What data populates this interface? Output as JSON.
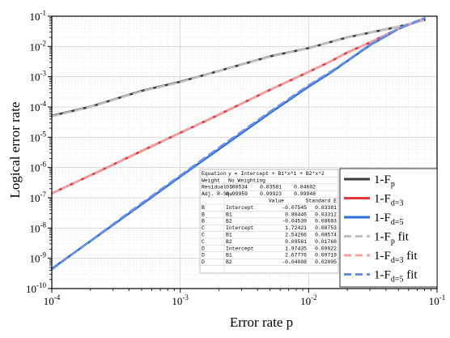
{
  "chart_data": {
    "type": "line",
    "xlabel": "Error rate p",
    "ylabel": "Logical error rate",
    "xscale": "log",
    "yscale": "log",
    "xlim": [
      0.0001,
      0.1
    ],
    "ylim": [
      1e-10,
      0.1
    ],
    "grid": true,
    "x_ticks": [
      {
        "value": 0.0001,
        "base": "10",
        "exp": "-4"
      },
      {
        "value": 0.001,
        "base": "10",
        "exp": "-3"
      },
      {
        "value": 0.01,
        "base": "10",
        "exp": "-2"
      },
      {
        "value": 0.1,
        "base": "10",
        "exp": "-1"
      }
    ],
    "y_ticks": [
      {
        "value": 1e-10,
        "base": "10",
        "exp": "-10"
      },
      {
        "value": 1e-09,
        "base": "10",
        "exp": "-9"
      },
      {
        "value": 1e-08,
        "base": "10",
        "exp": "-8"
      },
      {
        "value": 1e-07,
        "base": "10",
        "exp": "-7"
      },
      {
        "value": 1e-06,
        "base": "10",
        "exp": "-6"
      },
      {
        "value": 1e-05,
        "base": "10",
        "exp": "-5"
      },
      {
        "value": 0.0001,
        "base": "10",
        "exp": "-4"
      },
      {
        "value": 0.001,
        "base": "10",
        "exp": "-3"
      },
      {
        "value": 0.01,
        "base": "10",
        "exp": "-2"
      },
      {
        "value": 0.1,
        "base": "10",
        "exp": "-1"
      }
    ],
    "legend_position": "bottom-right",
    "series": [
      {
        "name": "1-Fp",
        "base": "1-F",
        "sub": "p",
        "suffix": "",
        "color": "#3c3c3c",
        "dashed": false,
        "x": [
          0.0001,
          0.0002,
          0.0005,
          0.001,
          0.002,
          0.005,
          0.01,
          0.02,
          0.05,
          0.08
        ],
        "y": [
          5.1e-05,
          0.000102,
          0.00034,
          0.00068,
          0.00155,
          0.0047,
          0.0088,
          0.02,
          0.045,
          0.075
        ]
      },
      {
        "name": "1-Fd=3",
        "base": "1-F",
        "sub": "d=3",
        "suffix": "",
        "color": "#e8343a",
        "dashed": false,
        "x": [
          0.0001,
          0.0002,
          0.0005,
          0.001,
          0.002,
          0.005,
          0.01,
          0.015,
          0.02,
          0.03,
          0.05,
          0.08
        ],
        "y": [
          1.4e-07,
          5.5e-07,
          3.5e-06,
          1.4e-05,
          5.6e-05,
          0.00037,
          0.00145,
          0.0033,
          0.0063,
          0.0135,
          0.038,
          0.085
        ]
      },
      {
        "name": "1-Fd=5",
        "base": "1-F",
        "sub": "d=5",
        "suffix": "",
        "color": "#2e6fe0",
        "dashed": false,
        "x": [
          0.0001,
          0.0002,
          0.0005,
          0.001,
          0.002,
          0.005,
          0.01,
          0.015,
          0.02,
          0.03,
          0.05,
          0.08
        ],
        "y": [
          4.5e-10,
          3.7e-09,
          6e-08,
          5e-07,
          4e-06,
          6.3e-05,
          0.00047,
          0.0014,
          0.0033,
          0.011,
          0.038,
          0.085
        ]
      },
      {
        "name": "1-Fp fit",
        "base": "1-F",
        "sub": "p",
        "suffix": " fit",
        "color": "#c0c0c0",
        "dashed": true,
        "x": [
          0.0001,
          0.0002,
          0.0005,
          0.001,
          0.002,
          0.005,
          0.01,
          0.02,
          0.05,
          0.08
        ],
        "y": [
          4.9e-05,
          0.0001,
          0.00033,
          0.00066,
          0.00155,
          0.0046,
          0.0087,
          0.0197,
          0.045,
          0.074
        ]
      },
      {
        "name": "1-Fd=3 fit",
        "base": "1-F",
        "sub": "d=3",
        "suffix": " fit",
        "color": "#f4a0a2",
        "dashed": true,
        "x": [
          0.0001,
          0.0002,
          0.0005,
          0.001,
          0.002,
          0.005,
          0.01,
          0.015,
          0.02,
          0.03,
          0.05,
          0.08
        ],
        "y": [
          1.4e-07,
          5.6e-07,
          3.6e-06,
          1.42e-05,
          5.7e-05,
          0.00037,
          0.00146,
          0.0033,
          0.0062,
          0.0136,
          0.038,
          0.086
        ]
      },
      {
        "name": "1-Fd=5 fit",
        "base": "1-F",
        "sub": "d=5",
        "suffix": " fit",
        "color": "#6a8fe8",
        "dashed": true,
        "x": [
          0.0001,
          0.0002,
          0.0005,
          0.001,
          0.002,
          0.005,
          0.01,
          0.015,
          0.02,
          0.03,
          0.05,
          0.08
        ],
        "y": [
          4.3e-10,
          3.8e-09,
          6.5e-08,
          5.4e-07,
          4.5e-06,
          7e-05,
          0.00052,
          0.0015,
          0.0034,
          0.0115,
          0.039,
          0.087
        ]
      }
    ],
    "fit_table": {
      "equation_label": "Equation",
      "equation": "y = Intercept + B1*x^1 + B2*x^2",
      "weight_label": "Weight",
      "weight": "No Weighting",
      "residual_label": "Residual S",
      "residual": [
        "0.00534",
        "0.03581",
        "0.04602"
      ],
      "r2_label": "Adj. R-Squ",
      "r2": [
        "0.99959",
        "0.99923",
        "0.99948"
      ],
      "value_header": "Value",
      "se_header": "Standard E",
      "rows": [
        [
          "B",
          "Intercept",
          "-0.07545",
          "0.03381"
        ],
        [
          "B",
          "B1",
          "0.88446",
          "0.03312"
        ],
        [
          "B",
          "B2",
          "-0.04539",
          "0.00683"
        ],
        [
          "C",
          "Intercept",
          "1.72421",
          "0.08753"
        ],
        [
          "C",
          "B1",
          "2.54266",
          "0.08574"
        ],
        [
          "C",
          "B2",
          "0.09561",
          "0.01768"
        ],
        [
          "D",
          "Intercept",
          "1.97435",
          "0.09922"
        ],
        [
          "D",
          "B1",
          "2.67776",
          "0.09719"
        ],
        [
          "D",
          "B2",
          "-0.04008",
          "0.02005"
        ]
      ]
    }
  }
}
